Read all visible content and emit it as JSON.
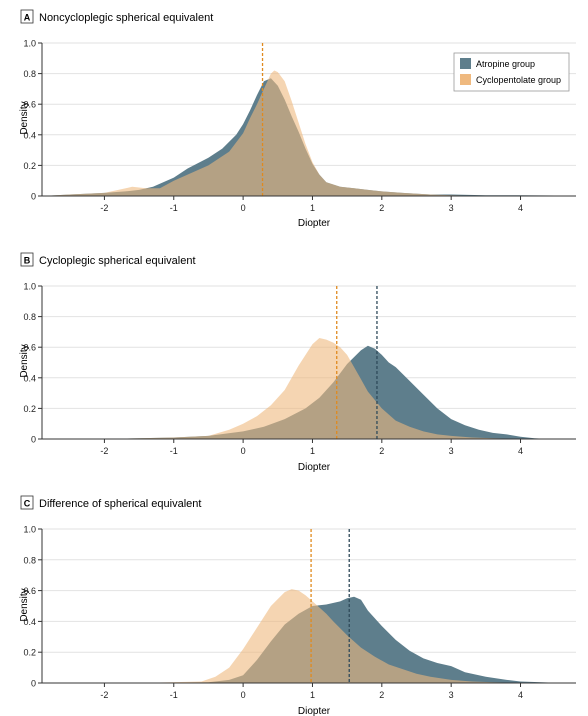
{
  "colors": {
    "atropine": "#5e7e8c",
    "cyclopentolate": "#efb97f",
    "overlap": "#b69b7c",
    "atropine_mean_line": "#2f4a5a",
    "cyclopentolate_mean_line": "#e08a1e",
    "grid": "#e2e2e2",
    "axis": "#333333"
  },
  "legend": {
    "atropine": "Atropine group",
    "cyclopentolate": "Cyclopentolate group"
  },
  "chart_data": [
    {
      "type": "area",
      "panel_letter": "A",
      "title": "Noncycloplegic spherical equivalent",
      "xlabel": "Diopter",
      "ylabel": "Density",
      "xlim": [
        -2.9,
        4.8
      ],
      "ylim": [
        0,
        1.0
      ],
      "xticks": [
        -2,
        -1,
        0,
        1,
        2,
        3,
        4
      ],
      "xtick_labels": [
        "-2",
        "-1",
        "0",
        "1",
        "2",
        "3",
        "4"
      ],
      "yticks": [
        0,
        0.2,
        0.4,
        0.6,
        0.8,
        1.0
      ],
      "ytick_labels": [
        "0",
        "0.2",
        "0.4",
        "0.6",
        "0.8",
        "1.0"
      ],
      "grid": true,
      "legend_position": "top-right",
      "series": [
        {
          "name": "Atropine group",
          "x": [
            -2.9,
            -2.5,
            -2.0,
            -1.7,
            -1.5,
            -1.3,
            -1.0,
            -0.8,
            -0.5,
            -0.3,
            -0.1,
            0.0,
            0.1,
            0.2,
            0.3,
            0.4,
            0.5,
            0.6,
            0.7,
            0.8,
            0.9,
            1.0,
            1.1,
            1.2,
            1.4,
            1.6,
            1.8,
            2.0,
            2.3,
            2.7,
            3.0,
            3.5,
            4.0,
            4.5,
            4.8
          ],
          "y": [
            0.0,
            0.01,
            0.02,
            0.03,
            0.04,
            0.06,
            0.12,
            0.18,
            0.25,
            0.31,
            0.4,
            0.47,
            0.56,
            0.66,
            0.75,
            0.77,
            0.72,
            0.63,
            0.52,
            0.42,
            0.31,
            0.21,
            0.14,
            0.09,
            0.06,
            0.05,
            0.04,
            0.03,
            0.02,
            0.01,
            0.01,
            0.005,
            0.005,
            0.003,
            0.0
          ],
          "mean": 0.28
        },
        {
          "name": "Cyclopentolate group",
          "x": [
            -2.9,
            -2.5,
            -2.0,
            -1.8,
            -1.6,
            -1.4,
            -1.2,
            -1.0,
            -0.7,
            -0.5,
            -0.2,
            0.0,
            0.1,
            0.2,
            0.3,
            0.4,
            0.45,
            0.5,
            0.6,
            0.7,
            0.8,
            0.9,
            1.0,
            1.1,
            1.2,
            1.4,
            1.6,
            1.8,
            2.0,
            2.3,
            2.7,
            3.0,
            3.5,
            4.0,
            4.8
          ],
          "y": [
            0.0,
            0.01,
            0.02,
            0.04,
            0.06,
            0.05,
            0.05,
            0.1,
            0.16,
            0.2,
            0.29,
            0.41,
            0.51,
            0.6,
            0.7,
            0.8,
            0.82,
            0.81,
            0.75,
            0.62,
            0.48,
            0.34,
            0.22,
            0.14,
            0.09,
            0.06,
            0.05,
            0.04,
            0.03,
            0.02,
            0.01,
            0.005,
            0.0,
            0.0,
            0.0
          ],
          "mean": 0.28
        }
      ]
    },
    {
      "type": "area",
      "panel_letter": "B",
      "title": "Cycloplegic spherical equivalent",
      "xlabel": "Diopter",
      "ylabel": "Density",
      "xlim": [
        -2.9,
        4.8
      ],
      "ylim": [
        0,
        1.0
      ],
      "xticks": [
        -2,
        -1,
        0,
        1,
        2,
        3,
        4
      ],
      "xtick_labels": [
        "-2",
        "-1",
        "0",
        "1",
        "2",
        "3",
        "4"
      ],
      "yticks": [
        0,
        0.2,
        0.4,
        0.6,
        0.8,
        1.0
      ],
      "ytick_labels": [
        "0",
        "0.2",
        "0.4",
        "0.6",
        "0.8",
        "1.0"
      ],
      "grid": true,
      "series": [
        {
          "name": "Atropine group",
          "x": [
            -2.0,
            -1.5,
            -1.0,
            -0.5,
            0.0,
            0.3,
            0.6,
            0.9,
            1.1,
            1.3,
            1.5,
            1.7,
            1.8,
            1.9,
            2.0,
            2.1,
            2.2,
            2.4,
            2.6,
            2.8,
            3.0,
            3.2,
            3.4,
            3.6,
            3.8,
            4.0,
            4.2,
            4.4
          ],
          "y": [
            0.0,
            0.005,
            0.01,
            0.02,
            0.05,
            0.08,
            0.13,
            0.2,
            0.27,
            0.37,
            0.49,
            0.58,
            0.61,
            0.59,
            0.55,
            0.5,
            0.47,
            0.38,
            0.29,
            0.2,
            0.13,
            0.09,
            0.06,
            0.04,
            0.03,
            0.015,
            0.005,
            0.0
          ],
          "mean": 1.93
        },
        {
          "name": "Cyclopentolate group",
          "x": [
            -2.0,
            -1.5,
            -1.0,
            -0.5,
            -0.2,
            0.0,
            0.2,
            0.4,
            0.6,
            0.8,
            1.0,
            1.1,
            1.2,
            1.3,
            1.4,
            1.5,
            1.6,
            1.7,
            1.8,
            2.0,
            2.2,
            2.4,
            2.6,
            2.8,
            3.0,
            3.3,
            3.6,
            4.0
          ],
          "y": [
            0.0,
            0.005,
            0.01,
            0.02,
            0.06,
            0.1,
            0.15,
            0.22,
            0.32,
            0.48,
            0.62,
            0.66,
            0.65,
            0.63,
            0.6,
            0.55,
            0.47,
            0.39,
            0.31,
            0.2,
            0.12,
            0.08,
            0.05,
            0.03,
            0.02,
            0.01,
            0.005,
            0.0
          ],
          "mean": 1.35
        }
      ]
    },
    {
      "type": "area",
      "panel_letter": "C",
      "title": "Difference of spherical equivalent",
      "xlabel": "Diopter",
      "ylabel": "Density",
      "xlim": [
        -2.9,
        4.8
      ],
      "ylim": [
        0,
        1.0
      ],
      "xticks": [
        -2,
        -1,
        0,
        1,
        2,
        3,
        4
      ],
      "xtick_labels": [
        "-2",
        "-1",
        "0",
        "1",
        "2",
        "3",
        "4"
      ],
      "yticks": [
        0,
        0.2,
        0.4,
        0.6,
        0.8,
        1.0
      ],
      "ytick_labels": [
        "0",
        "0.2",
        "0.4",
        "0.6",
        "0.8",
        "1.0"
      ],
      "grid": true,
      "series": [
        {
          "name": "Atropine group",
          "x": [
            -2.6,
            -1.5,
            -0.5,
            -0.2,
            0.0,
            0.2,
            0.4,
            0.6,
            0.8,
            1.0,
            1.2,
            1.4,
            1.5,
            1.6,
            1.7,
            1.8,
            2.0,
            2.2,
            2.4,
            2.6,
            2.8,
            3.0,
            3.2,
            3.5,
            3.8,
            4.0,
            4.3,
            4.6
          ],
          "y": [
            0.0,
            0.0,
            0.005,
            0.02,
            0.05,
            0.15,
            0.27,
            0.38,
            0.45,
            0.5,
            0.51,
            0.53,
            0.55,
            0.56,
            0.54,
            0.47,
            0.37,
            0.28,
            0.21,
            0.16,
            0.13,
            0.11,
            0.07,
            0.04,
            0.02,
            0.01,
            0.005,
            0.0
          ],
          "mean": 1.53
        },
        {
          "name": "Cyclopentolate group",
          "x": [
            -2.6,
            -1.5,
            -0.6,
            -0.4,
            -0.2,
            0.0,
            0.2,
            0.4,
            0.6,
            0.7,
            0.8,
            0.9,
            1.0,
            1.1,
            1.2,
            1.3,
            1.5,
            1.7,
            1.9,
            2.1,
            2.3,
            2.5,
            2.7,
            3.0,
            3.3,
            3.6,
            4.0,
            4.3
          ],
          "y": [
            0.0,
            0.0,
            0.01,
            0.04,
            0.1,
            0.22,
            0.36,
            0.5,
            0.59,
            0.61,
            0.6,
            0.57,
            0.53,
            0.49,
            0.45,
            0.4,
            0.31,
            0.23,
            0.17,
            0.12,
            0.09,
            0.06,
            0.04,
            0.02,
            0.01,
            0.005,
            0.0,
            0.0
          ],
          "mean": 0.98
        }
      ]
    }
  ]
}
